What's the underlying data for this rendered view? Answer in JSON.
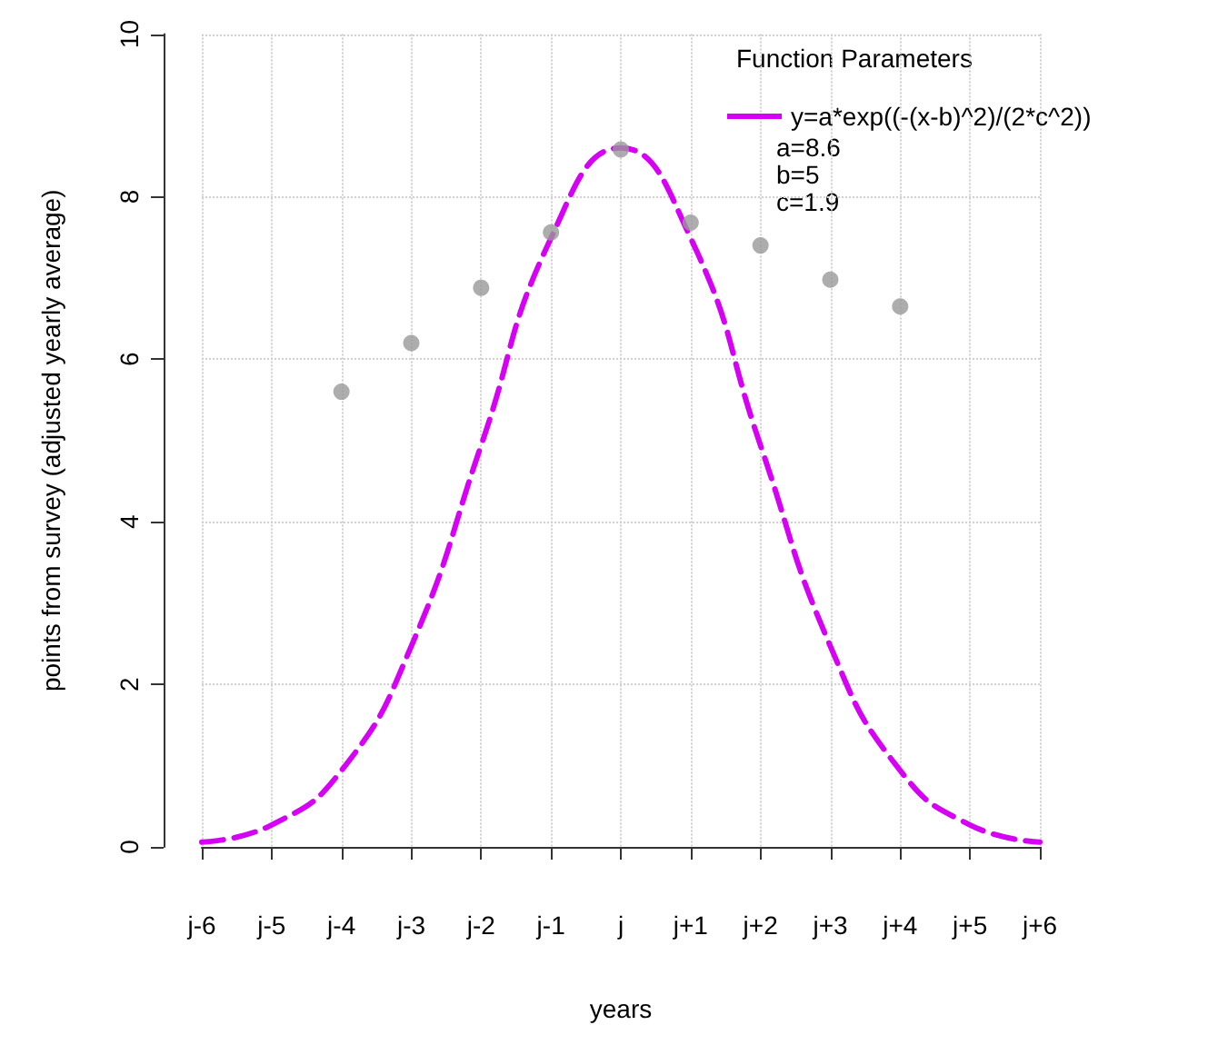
{
  "chart_data": {
    "type": "scatter",
    "xlabel": "years",
    "ylabel": "points from survey (adjusted yearly average)",
    "legend_title": "Function Parameters",
    "categories": [
      "j-6",
      "j-5",
      "j-4",
      "j-3",
      "j-2",
      "j-1",
      "j",
      "j+1",
      "j+2",
      "j+3",
      "j+4",
      "j+5",
      "j+6"
    ],
    "ylim": [
      0,
      10
    ],
    "yticks": [
      0,
      2,
      4,
      6,
      8,
      10
    ],
    "grid": true,
    "legend": "top right",
    "annotations": [
      "a=8.6",
      "b=5",
      "c=1.9"
    ],
    "series": [
      {
        "color": "#999999",
        "marker": "circle",
        "x": [
          "j-4",
          "j-3",
          "j-2",
          "j-1",
          "j",
          "j+1",
          "j+2",
          "j+3",
          "j+4"
        ],
        "values": [
          5.6,
          6.2,
          6.88,
          7.56,
          8.58,
          7.68,
          7.4,
          6.98,
          6.65
        ]
      },
      {
        "type": "line",
        "name": "y=a*exp((-(x-b)^2)/(2*c^2))",
        "color": "#d600f5",
        "line_style": "dashed",
        "marker": "none",
        "values": [
          0.06,
          0.27,
          0.94,
          2.47,
          4.94,
          7.49,
          8.6,
          7.49,
          4.94,
          2.47,
          0.94,
          0.27,
          0.06
        ]
      }
    ]
  }
}
